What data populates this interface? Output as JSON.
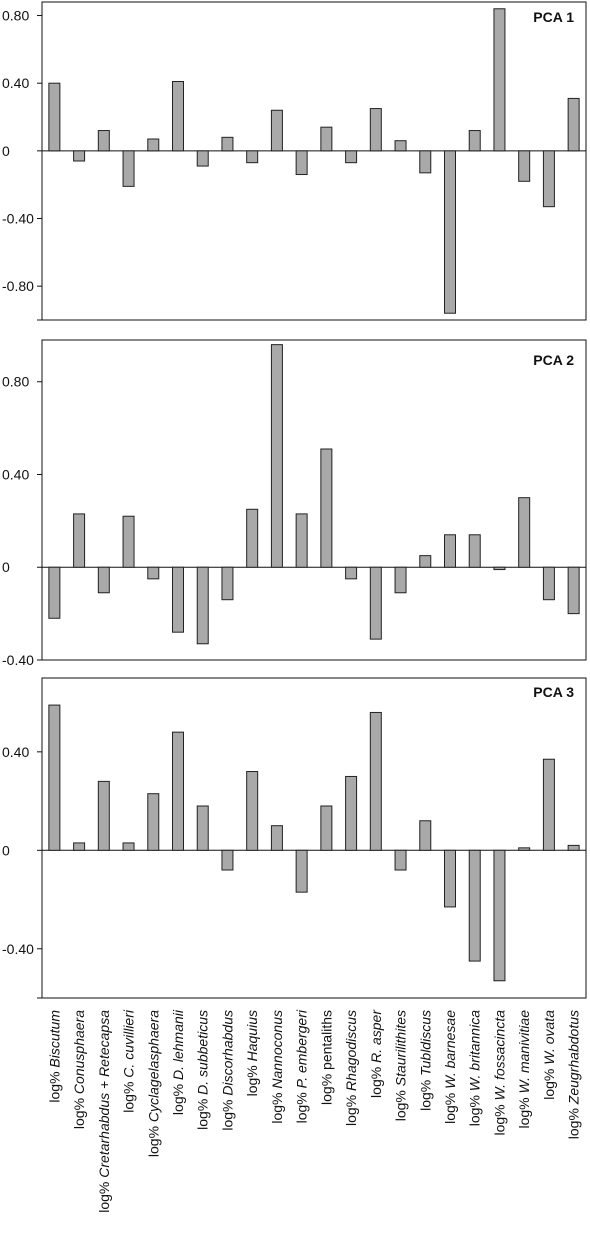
{
  "chart_data": [
    {
      "type": "bar",
      "title": "PCA 1",
      "ylim": [
        -1.0,
        0.88
      ],
      "yticks": [
        0.8,
        0.4,
        0,
        -0.4,
        -0.8
      ],
      "ytick_labels": [
        "0.80",
        "0.40",
        "0",
        "-0.40",
        "-0.80"
      ],
      "categories": [
        "Biscutum",
        "Conusphaera",
        "Cretarhabdus + Retecapsa",
        "C. cuvillieri",
        "Cyclagelasphaera",
        "D. lehmanii",
        "D. subbeticus",
        "Discorhabdus",
        "Haquius",
        "Nannoconus",
        "P. embergeri",
        "pentaliths",
        "Rhagodiscus",
        "R. asper",
        "Staurilithites",
        "Tubldiscus",
        "W. barnesae",
        "W. britannica",
        "W. fossacincta",
        "W. manivitiae",
        "W. ovata",
        "Zeugrhabdotus"
      ],
      "values": [
        0.4,
        -0.06,
        0.12,
        -0.21,
        0.07,
        0.41,
        -0.09,
        0.08,
        -0.07,
        0.24,
        -0.14,
        0.14,
        -0.07,
        0.25,
        0.06,
        -0.13,
        -0.96,
        0.12,
        0.84,
        -0.18,
        -0.33,
        0.31
      ]
    },
    {
      "type": "bar",
      "title": "PCA 2",
      "ylim": [
        -0.4,
        0.98
      ],
      "yticks": [
        0.8,
        0.4,
        0,
        -0.4
      ],
      "ytick_labels": [
        "0.80",
        "0.40",
        "0",
        "-0.40"
      ],
      "categories": [
        "Biscutum",
        "Conusphaera",
        "Cretarhabdus + Retecapsa",
        "C. cuvillieri",
        "Cyclagelasphaera",
        "D. lehmanii",
        "D. subbeticus",
        "Discorhabdus",
        "Haquius",
        "Nannoconus",
        "P. embergeri",
        "pentaliths",
        "Rhagodiscus",
        "R. asper",
        "Staurilithites",
        "Tubldiscus",
        "W. barnesae",
        "W. britannica",
        "W. fossacincta",
        "W. manivitiae",
        "W. ovata",
        "Zeugrhabdotus"
      ],
      "values": [
        -0.22,
        0.23,
        -0.11,
        0.22,
        -0.05,
        -0.28,
        -0.33,
        -0.14,
        0.25,
        0.96,
        0.23,
        0.51,
        -0.05,
        -0.31,
        -0.11,
        0.05,
        0.14,
        0.14,
        -0.01,
        0.3,
        -0.14,
        -0.2
      ]
    },
    {
      "type": "bar",
      "title": "PCA 3",
      "ylim": [
        -0.6,
        0.7
      ],
      "yticks": [
        0.4,
        0,
        -0.4
      ],
      "ytick_labels": [
        "0.40",
        "0",
        "-0.40"
      ],
      "categories": [
        "Biscutum",
        "Conusphaera",
        "Cretarhabdus + Retecapsa",
        "C. cuvillieri",
        "Cyclagelasphaera",
        "D. lehmanii",
        "D. subbeticus",
        "Discorhabdus",
        "Haquius",
        "Nannoconus",
        "P. embergeri",
        "pentaliths",
        "Rhagodiscus",
        "R. asper",
        "Staurilithites",
        "Tubldiscus",
        "W. barnesae",
        "W. britannica",
        "W. fossacincta",
        "W. manivitiae",
        "W. ovata",
        "Zeugrhabdotus"
      ],
      "values": [
        0.59,
        0.03,
        0.28,
        0.03,
        0.23,
        0.48,
        0.18,
        -0.08,
        0.32,
        0.1,
        -0.17,
        0.18,
        0.3,
        0.56,
        -0.08,
        0.12,
        -0.23,
        -0.45,
        -0.53,
        0.01,
        0.37,
        0.02
      ]
    }
  ],
  "x_labels": [
    {
      "prefix": "log% ",
      "name": "Biscutum",
      "italic": true
    },
    {
      "prefix": "log% ",
      "name": "Conusphaera",
      "italic": true
    },
    {
      "prefix": "log% ",
      "name": "Cretarhabdus + Retecapsa",
      "italic": true
    },
    {
      "prefix": "log% ",
      "name": "C. cuvillieri",
      "italic": true
    },
    {
      "prefix": "log% ",
      "name": "Cyclagelasphaera",
      "italic": true
    },
    {
      "prefix": "log% ",
      "name": "D. lehmanii",
      "italic": true
    },
    {
      "prefix": "log% ",
      "name": "D. subbeticus",
      "italic": true
    },
    {
      "prefix": "log% ",
      "name": "Discorhabdus",
      "italic": true
    },
    {
      "prefix": "log% ",
      "name": "Haquius",
      "italic": true
    },
    {
      "prefix": "log% ",
      "name": "Nannoconus",
      "italic": true
    },
    {
      "prefix": "log% ",
      "name": "P. embergeri",
      "italic": true
    },
    {
      "prefix": "log% ",
      "name": "pentaliths",
      "italic": false
    },
    {
      "prefix": "log% ",
      "name": "Rhagodiscus",
      "italic": true
    },
    {
      "prefix": "log% ",
      "name": "R. asper",
      "italic": true
    },
    {
      "prefix": "log% ",
      "name": "Staurilithites",
      "italic": true
    },
    {
      "prefix": "log% ",
      "name": "Tubldiscus",
      "italic": true
    },
    {
      "prefix": "log% ",
      "name": "W. barnesae",
      "italic": true
    },
    {
      "prefix": "log% ",
      "name": "W. britannica",
      "italic": true
    },
    {
      "prefix": "log% ",
      "name": "W. fossacincta",
      "italic": true
    },
    {
      "prefix": "log% ",
      "name": "W. manivitiae",
      "italic": true
    },
    {
      "prefix": "log% ",
      "name": "W. ovata",
      "italic": true
    },
    {
      "prefix": "log% ",
      "name": "Zeugrhabdotus",
      "italic": true
    }
  ],
  "colors": {
    "bar_fill": "#a9a9a9",
    "bar_stroke": "#222222",
    "axis": "#111111"
  }
}
